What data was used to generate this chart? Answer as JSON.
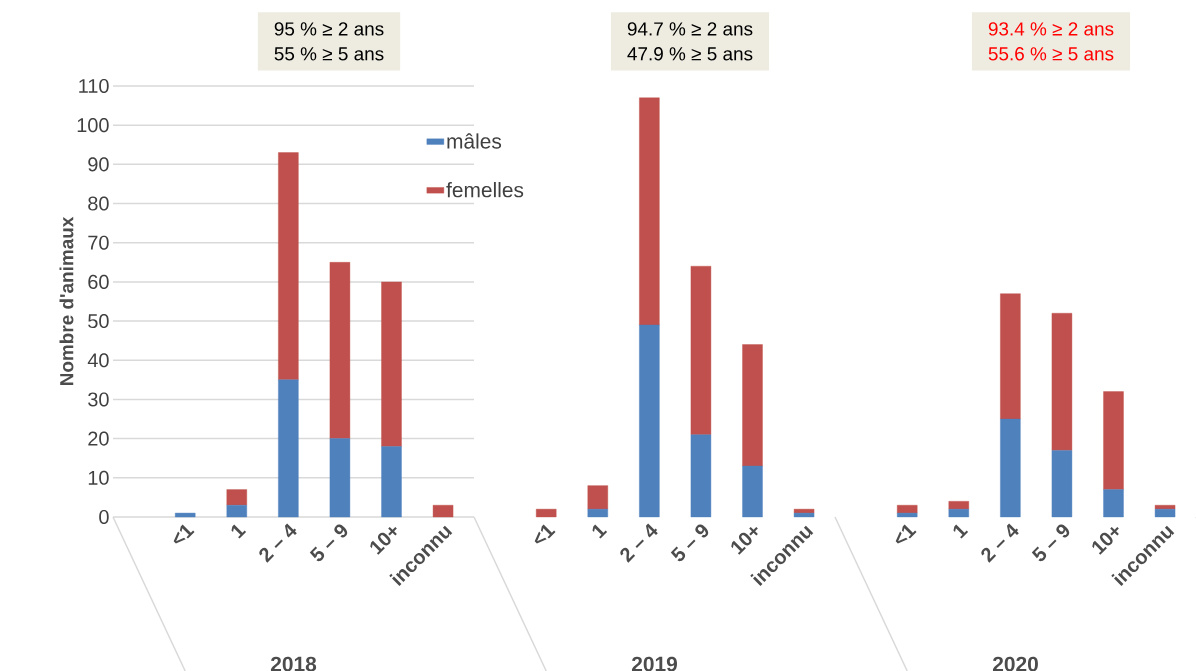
{
  "chart_data": [
    {
      "type": "bar",
      "stacked": true,
      "xlabel": "2018",
      "ylabel": "Nombre d'animaux",
      "categories": [
        "<1",
        "1",
        "2 – 4",
        "5 – 9",
        "10+",
        "inconnu"
      ],
      "ylim": [
        0,
        110
      ],
      "yticks": [
        0,
        10,
        20,
        30,
        40,
        50,
        60,
        70,
        80,
        90,
        100,
        110
      ],
      "grid": "y",
      "legend": "top right",
      "annotations": [
        "95 % ≥ 2 ans",
        "55 % ≥ 5 ans"
      ],
      "series": [
        {
          "name": "mâles",
          "color": "#4f81bd",
          "values": [
            1,
            3,
            35,
            20,
            18,
            0
          ]
        },
        {
          "name": "femelles",
          "color": "#c0504d",
          "values": [
            0,
            4,
            58,
            45,
            42,
            3
          ]
        }
      ]
    },
    {
      "type": "bar",
      "stacked": true,
      "xlabel": "2019",
      "categories": [
        "<1",
        "1",
        "2 – 4",
        "5 – 9",
        "10+",
        "inconnu"
      ],
      "ylim": [
        0,
        110
      ],
      "yticks": [
        0,
        10,
        20,
        30,
        40,
        50,
        60,
        70,
        80,
        90,
        100,
        110
      ],
      "grid": "y",
      "tick_labels": "x",
      "annotations": [
        "94.7 % ≥ 2 ans",
        "47.9 % ≥ 5 ans"
      ],
      "series": [
        {
          "color": "#4f81bd",
          "values": [
            0,
            2,
            49,
            21,
            13,
            1
          ]
        },
        {
          "color": "#c0504d",
          "values": [
            2,
            6,
            58,
            43,
            31,
            1
          ]
        }
      ]
    },
    {
      "type": "bar",
      "stacked": true,
      "xlabel": "2020",
      "categories": [
        "<1",
        "1",
        "2 – 4",
        "5 – 9",
        "10+",
        "inconnu"
      ],
      "ylim": [
        0,
        110
      ],
      "yticks": [
        0,
        10,
        20,
        30,
        40,
        50,
        60,
        70,
        80,
        90,
        100,
        110
      ],
      "grid": "y",
      "tick_labels": "x",
      "annotations": [
        "93.4 % ≥ 2 ans",
        "55.6 % ≥ 5 ans"
      ],
      "series": [
        {
          "color": "#4f81bd",
          "values": [
            1,
            2,
            25,
            17,
            7,
            2
          ]
        },
        {
          "color": "#c0504d",
          "values": [
            2,
            2,
            32,
            35,
            25,
            1
          ]
        }
      ]
    }
  ]
}
